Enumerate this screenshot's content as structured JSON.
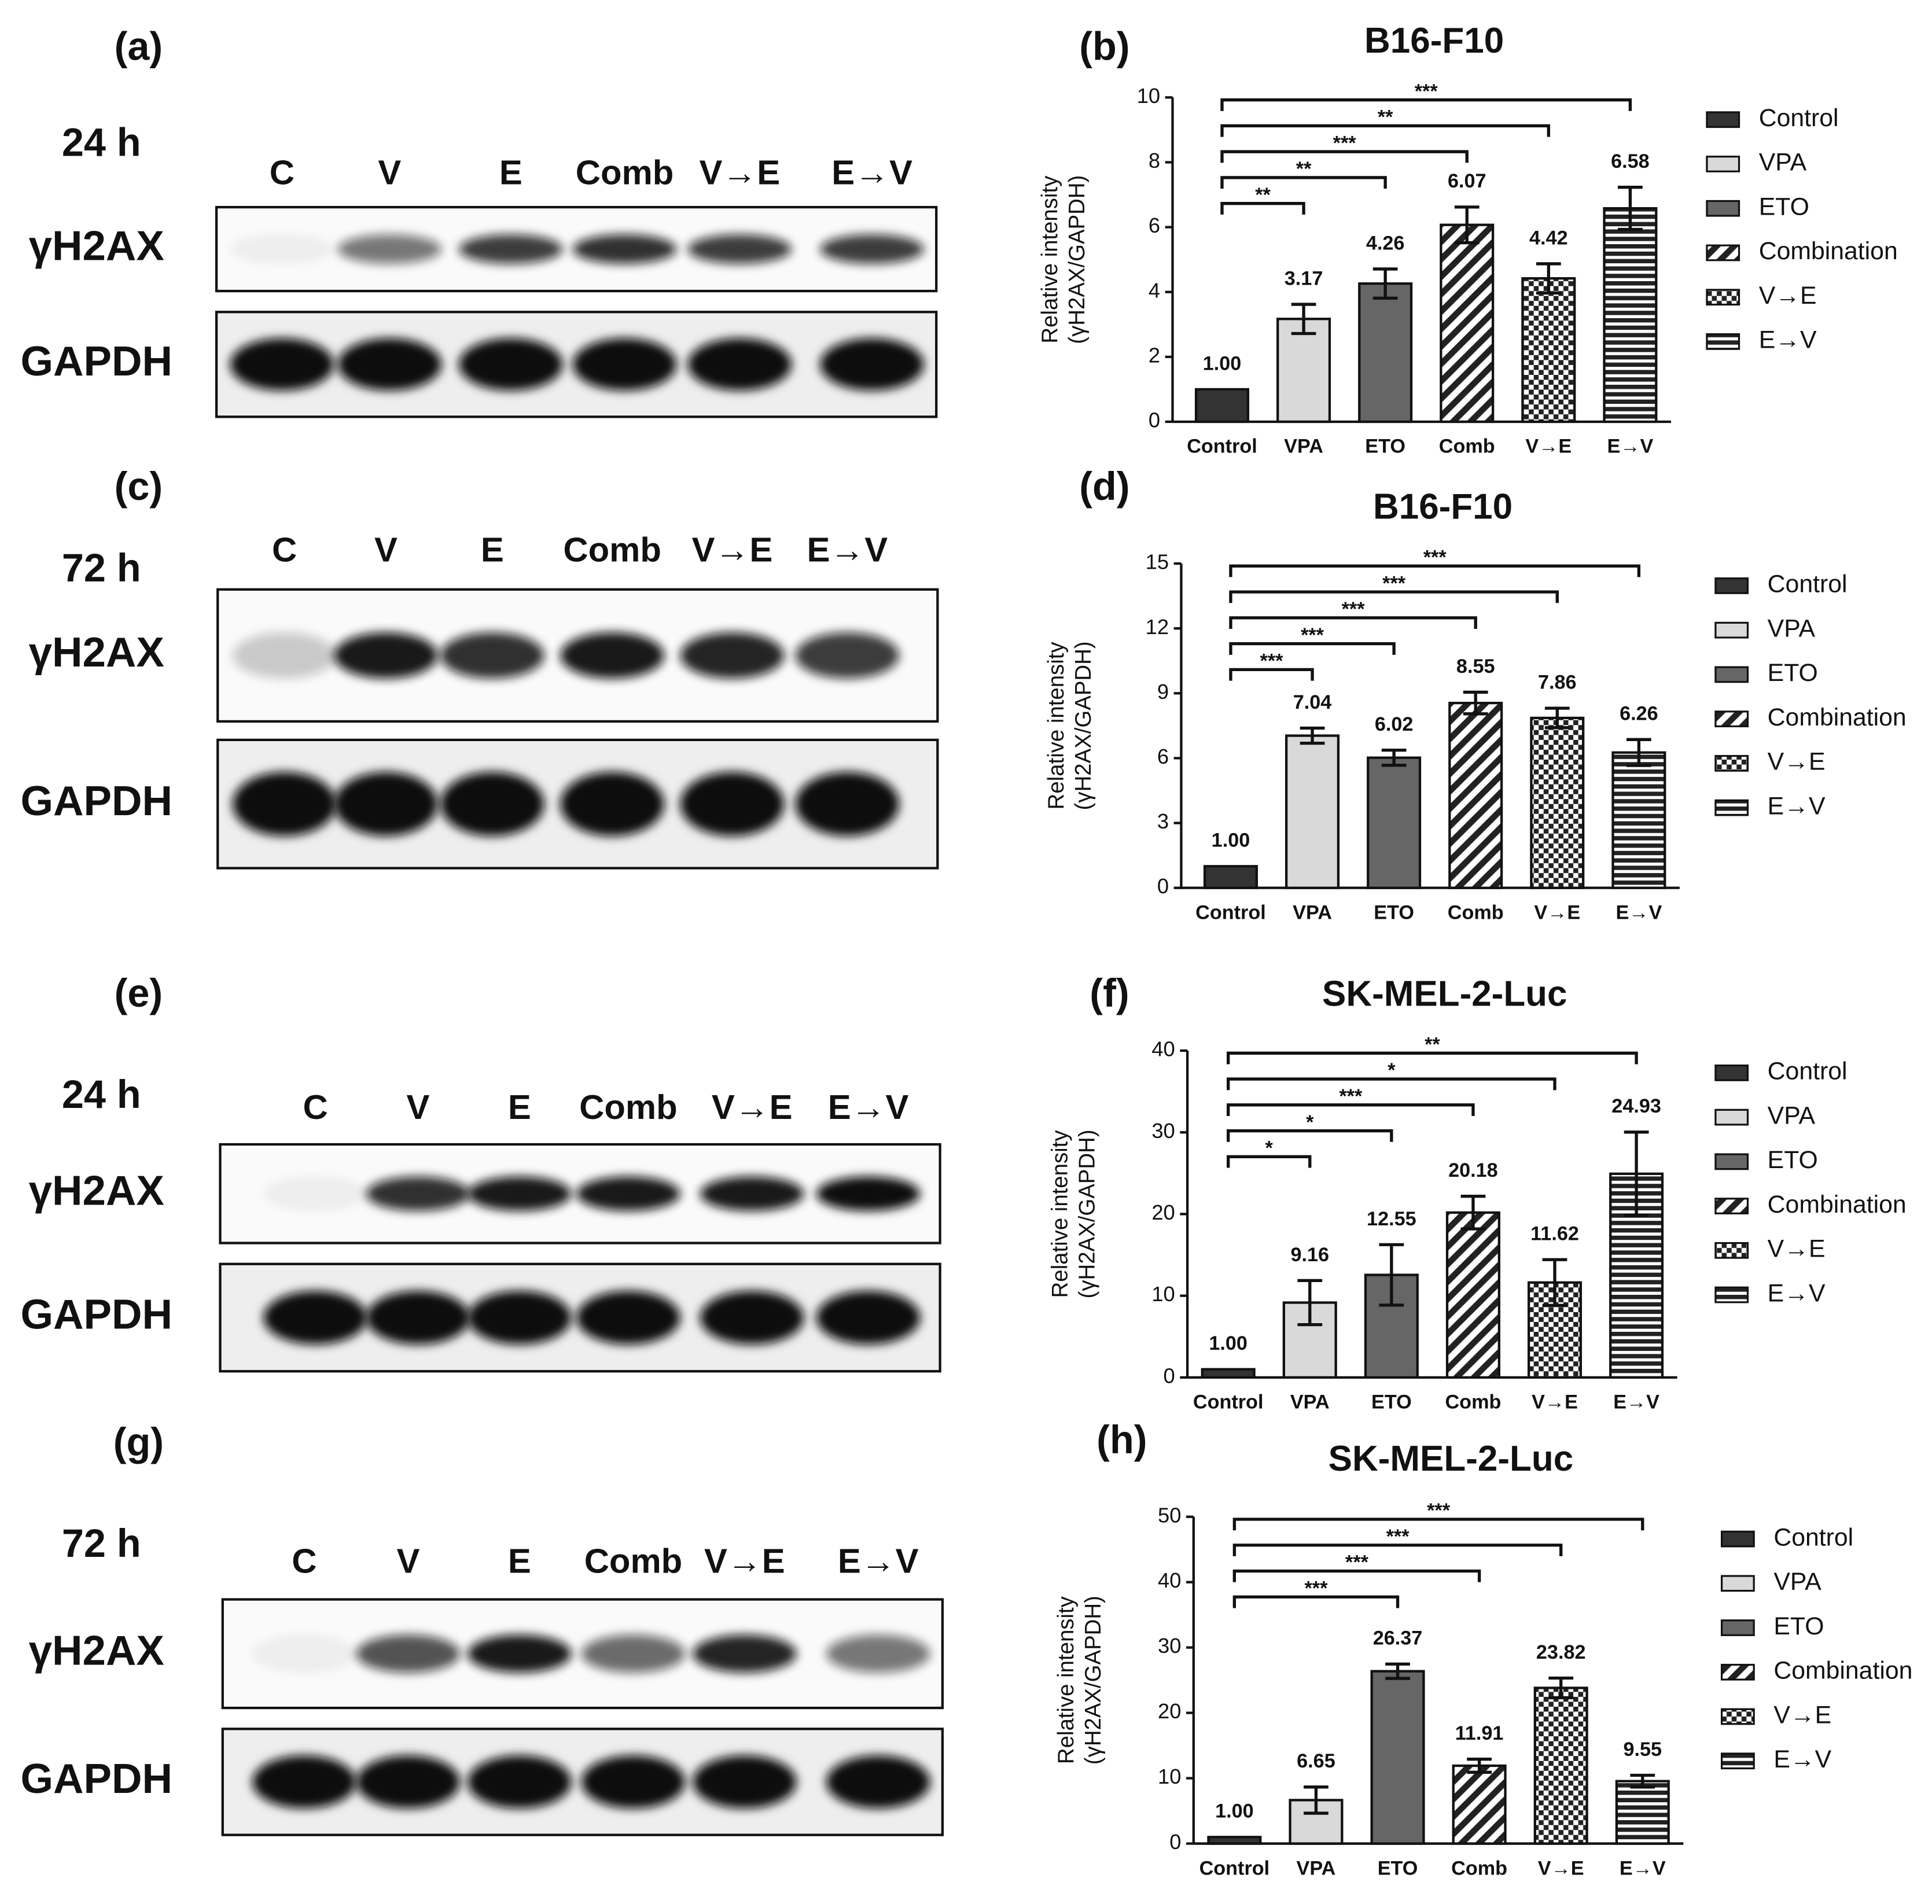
{
  "blots": [
    {
      "panel": "(a)",
      "time": "24 h",
      "lanes": [
        "C",
        "V",
        "E",
        "Comb",
        "V→E",
        "E→V"
      ],
      "rows": [
        "γH2AX",
        "GAPDH"
      ]
    },
    {
      "panel": "(c)",
      "time": "72 h",
      "lanes": [
        "C",
        "V",
        "E",
        "Comb",
        "V→E",
        "E→V"
      ],
      "rows": [
        "γH2AX",
        "GAPDH"
      ]
    },
    {
      "panel": "(e)",
      "time": "24 h",
      "lanes": [
        "C",
        "V",
        "E",
        "Comb",
        "V→E",
        "E→V"
      ],
      "rows": [
        "γH2AX",
        "GAPDH"
      ]
    },
    {
      "panel": "(g)",
      "time": "72 h",
      "lanes": [
        "C",
        "V",
        "E",
        "Comb",
        "V→E",
        "E→V"
      ],
      "rows": [
        "γH2AX",
        "GAPDH"
      ]
    }
  ],
  "chart_data": [
    {
      "type": "bar",
      "panel": "(b)",
      "title": "B16-F10",
      "ylabel": [
        "Relative intensity",
        "(γH2AX/GAPDH)"
      ],
      "categories": [
        "Control",
        "VPA",
        "ETO",
        "Comb",
        "V→E",
        "E→V"
      ],
      "values": [
        1,
        3.17,
        4.26,
        6.07,
        4.42,
        6.58
      ],
      "value_labels": [
        "1.00",
        "3.17",
        "4.26",
        "6.07",
        "4.42",
        "6.58"
      ],
      "errors": [
        0,
        0.45,
        0.45,
        0.55,
        0.45,
        0.65
      ],
      "significance": [
        "**",
        "**",
        "***",
        "**",
        "***"
      ],
      "ylim": [
        0,
        10
      ],
      "yticks": [
        0,
        2,
        4,
        6,
        8,
        10
      ],
      "legend": [
        {
          "name": "Control",
          "color": "#333333",
          "pattern": "solid"
        },
        {
          "name": "VPA",
          "color": "#d9d9d9",
          "pattern": "solid"
        },
        {
          "name": "ETO",
          "color": "#666666",
          "pattern": "solid"
        },
        {
          "name": "Combination",
          "color": "#222222",
          "pattern": "diagonal"
        },
        {
          "name": "V→E",
          "color": "#222222",
          "pattern": "checker"
        },
        {
          "name": "E→V",
          "color": "#222222",
          "pattern": "horizontal"
        }
      ]
    },
    {
      "type": "bar",
      "panel": "(d)",
      "title": "B16-F10",
      "ylabel": [
        "Relative intensity",
        "(γH2AX/GAPDH)"
      ],
      "categories": [
        "Control",
        "VPA",
        "ETO",
        "Comb",
        "V→E",
        "E→V"
      ],
      "values": [
        1,
        7.04,
        6.02,
        8.55,
        7.86,
        6.26
      ],
      "value_labels": [
        "1.00",
        "7.04",
        "6.02",
        "8.55",
        "7.86",
        "6.26"
      ],
      "errors": [
        0,
        0.35,
        0.35,
        0.5,
        0.45,
        0.6
      ],
      "significance": [
        "***",
        "***",
        "***",
        "***",
        "***"
      ],
      "ylim": [
        0,
        15
      ],
      "yticks": [
        0,
        3,
        6,
        9,
        12,
        15
      ],
      "legend": [
        {
          "name": "Control",
          "color": "#333333",
          "pattern": "solid"
        },
        {
          "name": "VPA",
          "color": "#d9d9d9",
          "pattern": "solid"
        },
        {
          "name": "ETO",
          "color": "#666666",
          "pattern": "solid"
        },
        {
          "name": "Combination",
          "color": "#222222",
          "pattern": "diagonal"
        },
        {
          "name": "V→E",
          "color": "#222222",
          "pattern": "checker"
        },
        {
          "name": "E→V",
          "color": "#222222",
          "pattern": "horizontal"
        }
      ]
    },
    {
      "type": "bar",
      "panel": "(f)",
      "title": "SK-MEL-2-Luc",
      "ylabel": [
        "Relative intensity",
        "(γH2AX/GAPDH)"
      ],
      "categories": [
        "Control",
        "VPA",
        "ETO",
        "Comb",
        "V→E",
        "E→V"
      ],
      "values": [
        1,
        9.16,
        12.55,
        20.18,
        11.62,
        24.93
      ],
      "value_labels": [
        "1.00",
        "9.16",
        "12.55",
        "20.18",
        "11.62",
        "24.93"
      ],
      "errors": [
        0,
        2.7,
        3.7,
        2.0,
        2.8,
        5.1
      ],
      "significance": [
        "*",
        "*",
        "***",
        "*",
        "**"
      ],
      "ylim": [
        0,
        40
      ],
      "yticks": [
        0,
        10,
        20,
        30,
        40
      ],
      "legend": [
        {
          "name": "Control",
          "color": "#333333",
          "pattern": "solid"
        },
        {
          "name": "VPA",
          "color": "#d9d9d9",
          "pattern": "solid"
        },
        {
          "name": "ETO",
          "color": "#666666",
          "pattern": "solid"
        },
        {
          "name": "Combination",
          "color": "#222222",
          "pattern": "diagonal"
        },
        {
          "name": "V→E",
          "color": "#222222",
          "pattern": "checker"
        },
        {
          "name": "E→V",
          "color": "#222222",
          "pattern": "horizontal"
        }
      ]
    },
    {
      "type": "bar",
      "panel": "(h)",
      "title": "SK-MEL-2-Luc",
      "ylabel": [
        "Relative intensity",
        "(γH2AX/GAPDH)"
      ],
      "categories": [
        "Control",
        "VPA",
        "ETO",
        "Comb",
        "V→E",
        "E→V"
      ],
      "values": [
        1,
        6.65,
        26.37,
        11.91,
        23.82,
        9.55
      ],
      "value_labels": [
        "1.00",
        "6.65",
        "26.37",
        "11.91",
        "23.82",
        "9.55"
      ],
      "errors": [
        0,
        2.0,
        1.1,
        1.0,
        1.5,
        0.9
      ],
      "significance": [
        null,
        "***",
        "***",
        "***",
        "***"
      ],
      "ylim": [
        0,
        50
      ],
      "yticks": [
        0,
        10,
        20,
        30,
        40,
        50
      ],
      "legend": [
        {
          "name": "Control",
          "color": "#333333",
          "pattern": "solid"
        },
        {
          "name": "VPA",
          "color": "#d9d9d9",
          "pattern": "solid"
        },
        {
          "name": "ETO",
          "color": "#666666",
          "pattern": "solid"
        },
        {
          "name": "Combination",
          "color": "#222222",
          "pattern": "diagonal"
        },
        {
          "name": "V→E",
          "color": "#222222",
          "pattern": "checker"
        },
        {
          "name": "E→V",
          "color": "#222222",
          "pattern": "horizontal"
        }
      ]
    }
  ]
}
